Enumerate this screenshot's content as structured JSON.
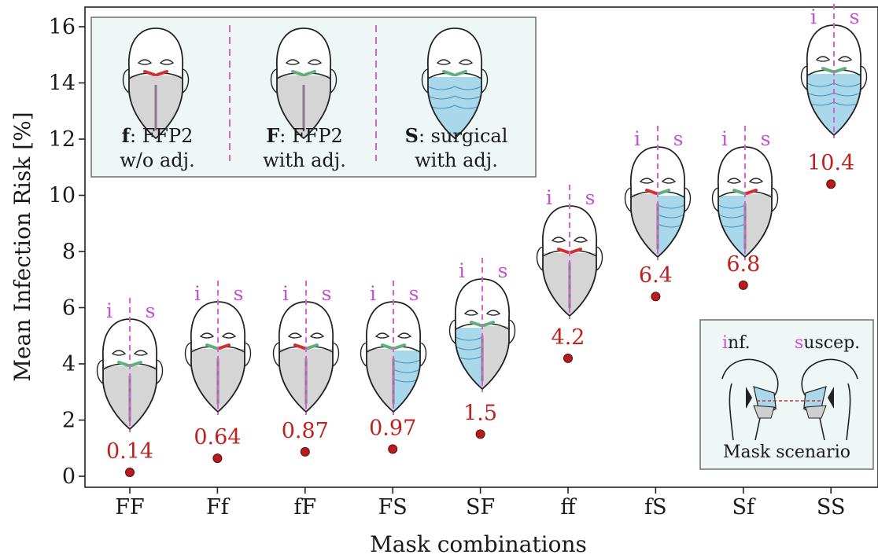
{
  "chart_data": {
    "type": "scatter",
    "xlabel": "Mask combinations",
    "ylabel": "Mean Infection Risk  [%]",
    "ylim": [
      0,
      16.5
    ],
    "yticks": [
      0,
      2,
      4,
      6,
      8,
      10,
      12,
      14,
      16
    ],
    "categories": [
      "FF",
      "Ff",
      "fF",
      "FS",
      "SF",
      "ff",
      "fS",
      "Sf",
      "SS"
    ],
    "values": [
      0.14,
      0.64,
      0.87,
      0.97,
      1.5,
      4.2,
      6.4,
      6.8,
      10.4
    ],
    "value_labels": [
      "0.14",
      "0.64",
      "0.87",
      "0.97",
      "1.5",
      "4.2",
      "6.4",
      "6.8",
      "10.4"
    ],
    "marker_color": "#b71c1c",
    "label_color": "#c0201e",
    "face_split_labels": {
      "infectious": "i",
      "susceptible": "s"
    },
    "grid": false,
    "legend": {
      "placement": "top-left",
      "items": [
        {
          "code": "f",
          "line1": ": FFP2",
          "line2": "w/o adj."
        },
        {
          "code": "F",
          "line1": ": FFP2",
          "line2": "with adj."
        },
        {
          "code": "S",
          "line1": ": surgical",
          "line2": "with adj."
        }
      ]
    },
    "inset": {
      "placement": "bottom-right",
      "inf_first": "i",
      "inf_rest": "nf.",
      "sus_first": "s",
      "sus_rest": "uscep.",
      "caption": "Mask scenario"
    }
  },
  "colors": {
    "ffp2": "#d5d5d5",
    "surgical": "#a9d8ea",
    "strip_adjusted": "#5fb07b",
    "strip_unadjusted": "#d32f2f",
    "split_line": "#d760d6",
    "panel_bg": "#eef6f6"
  }
}
